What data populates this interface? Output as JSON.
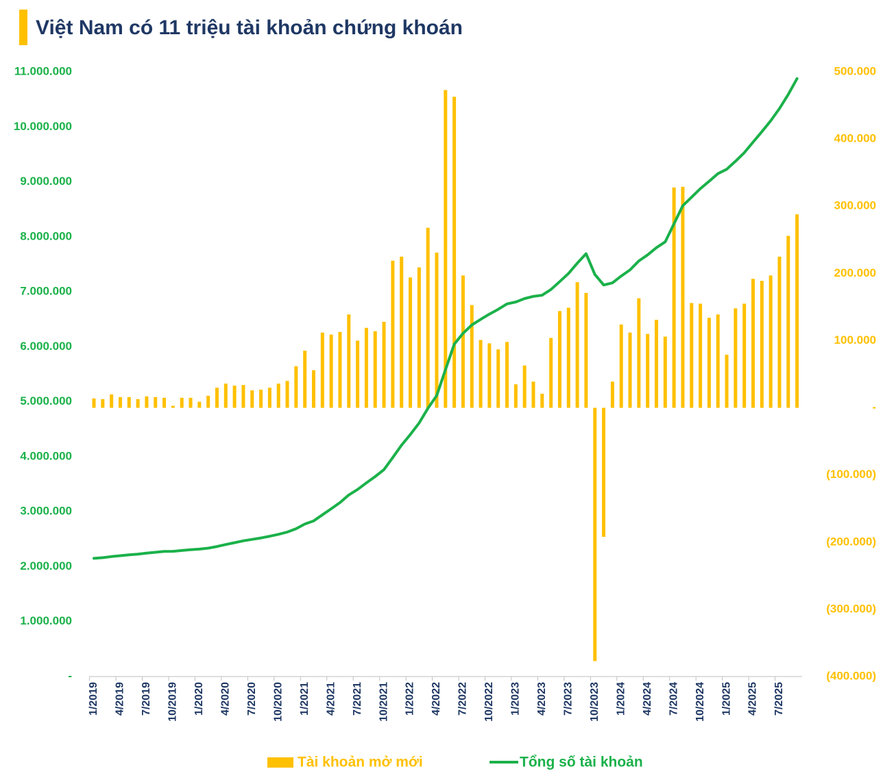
{
  "chart_data": {
    "type": "combo",
    "title": "Việt Nam có 11 triệu tài khoản chứng khoán",
    "categories": [
      "1/2019",
      null,
      null,
      "4/2019",
      null,
      null,
      "7/2019",
      null,
      null,
      "10/2019",
      null,
      null,
      "1/2020",
      null,
      null,
      "4/2020",
      null,
      null,
      "7/2020",
      null,
      null,
      "10/2020",
      null,
      null,
      "1/2021",
      null,
      null,
      "4/2021",
      null,
      null,
      "7/2021",
      null,
      null,
      "10/2021",
      null,
      null,
      "1/2022",
      null,
      null,
      "4/2022",
      null,
      null,
      "7/2022",
      null,
      null,
      "10/2022",
      null,
      null,
      "1/2023",
      null,
      null,
      "4/2023",
      null,
      null,
      "7/2023",
      null,
      null,
      "10/2023",
      null,
      null,
      "1/2024",
      null,
      null,
      "4/2024",
      null,
      null,
      "7/2024",
      null,
      null,
      "10/2024",
      null,
      null,
      "1/2025",
      null,
      null,
      "4/2025",
      null,
      null,
      "7/2025",
      null,
      null
    ],
    "series": [
      {
        "name": "Tài khoản mở mới",
        "type": "bar",
        "axis": "y2",
        "color": "#ffc000",
        "values": [
          14000,
          13000,
          20000,
          16000,
          16000,
          13000,
          17000,
          16000,
          15000,
          3000,
          15000,
          15000,
          9000,
          18000,
          30000,
          36000,
          33000,
          34000,
          26000,
          27000,
          30000,
          36000,
          40000,
          62000,
          85000,
          56000,
          112000,
          109000,
          113000,
          139000,
          100000,
          119000,
          114000,
          128000,
          219000,
          225000,
          194000,
          209000,
          268000,
          231000,
          473000,
          463000,
          197000,
          153000,
          101000,
          96000,
          87000,
          98000,
          35000,
          63000,
          39000,
          21000,
          104000,
          144000,
          149000,
          187000,
          171000,
          -377000,
          -192000,
          39000,
          124000,
          112000,
          163000,
          110000,
          131000,
          106000,
          328000,
          329000,
          156000,
          155000,
          134000,
          139000,
          79000,
          148000,
          155000,
          192000,
          189000,
          197000,
          225000,
          256000,
          288000
        ]
      },
      {
        "name": "Tổng số tài khoản",
        "type": "line",
        "axis": "y",
        "color": "#1bb14a",
        "values": [
          2150000,
          2163000,
          2183000,
          2199000,
          2215000,
          2228000,
          2245000,
          2261000,
          2276000,
          2279000,
          2294000,
          2309000,
          2318000,
          2336000,
          2366000,
          2402000,
          2435000,
          2469000,
          2495000,
          2522000,
          2552000,
          2588000,
          2628000,
          2690000,
          2775000,
          2831000,
          2943000,
          3052000,
          3165000,
          3304000,
          3404000,
          3523000,
          3637000,
          3765000,
          3984000,
          4209000,
          4403000,
          4612000,
          4880000,
          5111000,
          5584000,
          6047000,
          6244000,
          6397000,
          6498000,
          6594000,
          6681000,
          6779000,
          6814000,
          6877000,
          6916000,
          6937000,
          7041000,
          7185000,
          7334000,
          7521000,
          7692000,
          7315000,
          7123000,
          7162000,
          7286000,
          7398000,
          7561000,
          7671000,
          7802000,
          7908000,
          8236000,
          8565000,
          8721000,
          8876000,
          9010000,
          9149000,
          9228000,
          9376000,
          9531000,
          9723000,
          9912000,
          10109000,
          10334000,
          10590000,
          10878000
        ]
      }
    ],
    "ylim": [
      0,
      11000000
    ],
    "yticks": [
      {
        "value": 0,
        "label": "-"
      },
      {
        "value": 1000000,
        "label": "1.000.000"
      },
      {
        "value": 2000000,
        "label": "2.000.000"
      },
      {
        "value": 3000000,
        "label": "3.000.000"
      },
      {
        "value": 4000000,
        "label": "4.000.000"
      },
      {
        "value": 5000000,
        "label": "5.000.000"
      },
      {
        "value": 6000000,
        "label": "6.000.000"
      },
      {
        "value": 7000000,
        "label": "7.000.000"
      },
      {
        "value": 8000000,
        "label": "8.000.000"
      },
      {
        "value": 9000000,
        "label": "9.000.000"
      },
      {
        "value": 10000000,
        "label": "10.000.000"
      },
      {
        "value": 11000000,
        "label": "11.000.000"
      }
    ],
    "y2lim": [
      -400000,
      500000
    ],
    "y2ticks": [
      {
        "value": -400000,
        "label": "(400.000)"
      },
      {
        "value": -300000,
        "label": "(300.000)"
      },
      {
        "value": -200000,
        "label": "(200.000)"
      },
      {
        "value": -100000,
        "label": "(100.000)"
      },
      {
        "value": 0,
        "label": "-"
      },
      {
        "value": 100000,
        "label": "100.000"
      },
      {
        "value": 200000,
        "label": "200.000"
      },
      {
        "value": 300000,
        "label": "300.000"
      },
      {
        "value": 400000,
        "label": "400.000"
      },
      {
        "value": 500000,
        "label": "500.000"
      }
    ],
    "grid": false,
    "legend": "bottom"
  }
}
